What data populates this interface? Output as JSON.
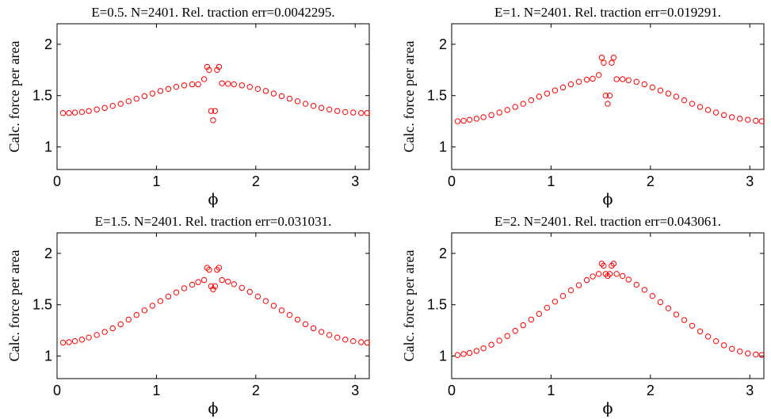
{
  "chart_data": [
    {
      "type": "scatter",
      "title": "E=0.5. N=2401. Rel. traction err=0.0042295.",
      "xlabel": "ϕ",
      "ylabel": "Calc. force per area",
      "xlim": [
        0,
        3.1416
      ],
      "ylim": [
        0.78,
        2.2
      ],
      "xticks": [
        "0",
        "1",
        "2",
        "3"
      ],
      "yticks": [
        "1",
        "1.5",
        "2"
      ],
      "color": "#ff0000",
      "marker": "circle-open",
      "grid": false,
      "series": [
        {
          "x": [
            0.06,
            0.12,
            0.18,
            0.25,
            0.32,
            0.4,
            0.48,
            0.56,
            0.64,
            0.72,
            0.8,
            0.88,
            0.96,
            1.04,
            1.12,
            1.2,
            1.28,
            1.36,
            1.42,
            1.48,
            1.51,
            1.53,
            1.55,
            1.57,
            1.59,
            1.61,
            1.63,
            1.66,
            1.72,
            1.78,
            1.86,
            1.94,
            2.02,
            2.1,
            2.18,
            2.26,
            2.34,
            2.42,
            2.5,
            2.58,
            2.66,
            2.74,
            2.82,
            2.9,
            2.98,
            3.06,
            3.12
          ],
          "y": [
            1.33,
            1.33,
            1.335,
            1.34,
            1.35,
            1.365,
            1.38,
            1.4,
            1.42,
            1.445,
            1.47,
            1.495,
            1.52,
            1.545,
            1.565,
            1.585,
            1.6,
            1.61,
            1.61,
            1.66,
            1.78,
            1.75,
            1.35,
            1.26,
            1.35,
            1.75,
            1.78,
            1.62,
            1.615,
            1.61,
            1.6,
            1.585,
            1.565,
            1.545,
            1.52,
            1.495,
            1.47,
            1.445,
            1.42,
            1.4,
            1.38,
            1.365,
            1.35,
            1.34,
            1.335,
            1.33,
            1.33
          ]
        }
      ]
    },
    {
      "type": "scatter",
      "title": "E=1. N=2401. Rel. traction err=0.019291.",
      "xlabel": "ϕ",
      "ylabel": "Calc. force per area",
      "xlim": [
        0,
        3.1416
      ],
      "ylim": [
        0.78,
        2.2
      ],
      "xticks": [
        "0",
        "1",
        "2",
        "3"
      ],
      "yticks": [
        "1",
        "1.5",
        "2"
      ],
      "color": "#ff0000",
      "marker": "circle-open",
      "grid": false,
      "series": [
        {
          "x": [
            0.06,
            0.12,
            0.18,
            0.25,
            0.32,
            0.4,
            0.48,
            0.56,
            0.64,
            0.72,
            0.8,
            0.88,
            0.96,
            1.04,
            1.12,
            1.2,
            1.28,
            1.36,
            1.42,
            1.48,
            1.51,
            1.53,
            1.55,
            1.57,
            1.59,
            1.61,
            1.63,
            1.66,
            1.72,
            1.78,
            1.86,
            1.94,
            2.02,
            2.1,
            2.18,
            2.26,
            2.34,
            2.42,
            2.5,
            2.58,
            2.66,
            2.74,
            2.82,
            2.9,
            2.98,
            3.06,
            3.12
          ],
          "y": [
            1.25,
            1.255,
            1.265,
            1.275,
            1.29,
            1.31,
            1.335,
            1.36,
            1.39,
            1.42,
            1.455,
            1.49,
            1.52,
            1.55,
            1.58,
            1.61,
            1.635,
            1.655,
            1.665,
            1.7,
            1.87,
            1.82,
            1.5,
            1.42,
            1.5,
            1.82,
            1.87,
            1.66,
            1.66,
            1.65,
            1.635,
            1.61,
            1.58,
            1.55,
            1.52,
            1.49,
            1.455,
            1.42,
            1.39,
            1.36,
            1.335,
            1.31,
            1.29,
            1.275,
            1.265,
            1.255,
            1.25
          ]
        }
      ]
    },
    {
      "type": "scatter",
      "title": "E=1.5. N=2401. Rel. traction err=0.031031.",
      "xlabel": "ϕ",
      "ylabel": "Calc. force per area",
      "xlim": [
        0,
        3.1416
      ],
      "ylim": [
        0.78,
        2.2
      ],
      "xticks": [
        "0",
        "1",
        "2",
        "3"
      ],
      "yticks": [
        "1",
        "1.5",
        "2"
      ],
      "color": "#ff0000",
      "marker": "circle-open",
      "grid": false,
      "series": [
        {
          "x": [
            0.06,
            0.12,
            0.18,
            0.25,
            0.32,
            0.4,
            0.48,
            0.56,
            0.64,
            0.72,
            0.8,
            0.88,
            0.96,
            1.04,
            1.12,
            1.2,
            1.28,
            1.36,
            1.42,
            1.48,
            1.51,
            1.53,
            1.55,
            1.57,
            1.59,
            1.61,
            1.63,
            1.66,
            1.72,
            1.78,
            1.86,
            1.94,
            2.02,
            2.1,
            2.18,
            2.26,
            2.34,
            2.42,
            2.5,
            2.58,
            2.66,
            2.74,
            2.82,
            2.9,
            2.98,
            3.06,
            3.12
          ],
          "y": [
            1.13,
            1.135,
            1.145,
            1.16,
            1.18,
            1.205,
            1.235,
            1.27,
            1.31,
            1.355,
            1.4,
            1.445,
            1.49,
            1.535,
            1.58,
            1.62,
            1.66,
            1.695,
            1.72,
            1.74,
            1.86,
            1.84,
            1.68,
            1.65,
            1.68,
            1.84,
            1.86,
            1.74,
            1.725,
            1.7,
            1.665,
            1.625,
            1.58,
            1.535,
            1.49,
            1.445,
            1.4,
            1.355,
            1.31,
            1.27,
            1.235,
            1.205,
            1.18,
            1.16,
            1.145,
            1.135,
            1.13
          ]
        }
      ]
    },
    {
      "type": "scatter",
      "title": "E=2. N=2401. Rel. traction err=0.043061.",
      "xlabel": "ϕ",
      "ylabel": "Calc. force per area",
      "xlim": [
        0,
        3.1416
      ],
      "ylim": [
        0.78,
        2.2
      ],
      "xticks": [
        "0",
        "1",
        "2",
        "3"
      ],
      "yticks": [
        "1",
        "1.5",
        "2"
      ],
      "color": "#ff0000",
      "marker": "circle-open",
      "grid": false,
      "series": [
        {
          "x": [
            0.06,
            0.12,
            0.18,
            0.25,
            0.32,
            0.4,
            0.48,
            0.56,
            0.64,
            0.72,
            0.8,
            0.88,
            0.96,
            1.04,
            1.12,
            1.2,
            1.28,
            1.36,
            1.42,
            1.48,
            1.51,
            1.53,
            1.55,
            1.57,
            1.59,
            1.61,
            1.63,
            1.66,
            1.72,
            1.78,
            1.86,
            1.94,
            2.02,
            2.1,
            2.18,
            2.26,
            2.34,
            2.42,
            2.5,
            2.58,
            2.66,
            2.74,
            2.82,
            2.9,
            2.98,
            3.06,
            3.12
          ],
          "y": [
            1.01,
            1.02,
            1.03,
            1.05,
            1.075,
            1.11,
            1.15,
            1.195,
            1.245,
            1.3,
            1.355,
            1.41,
            1.47,
            1.53,
            1.585,
            1.64,
            1.69,
            1.74,
            1.775,
            1.8,
            1.9,
            1.88,
            1.8,
            1.78,
            1.8,
            1.88,
            1.9,
            1.8,
            1.78,
            1.745,
            1.695,
            1.645,
            1.585,
            1.525,
            1.465,
            1.405,
            1.35,
            1.295,
            1.24,
            1.19,
            1.145,
            1.105,
            1.07,
            1.045,
            1.025,
            1.015,
            1.01
          ]
        }
      ]
    }
  ]
}
